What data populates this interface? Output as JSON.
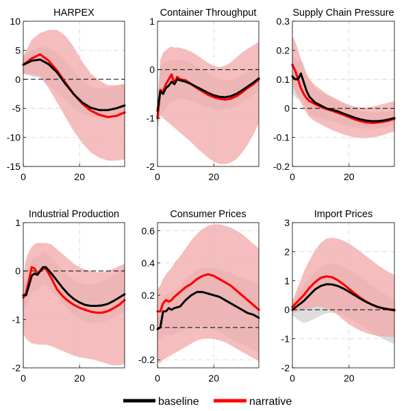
{
  "legend": {
    "baseline_label": "baseline",
    "narrative_label": "narrative",
    "baseline_color": "#000000",
    "narrative_color": "#ff0000",
    "placement": "bottom"
  },
  "colors": {
    "baseline_band": "#d9d9d9",
    "narrative_band": "#f2a7a7",
    "zero_line": "#000000",
    "grid": "#c8c8c8"
  },
  "chart_data": [
    {
      "type": "line",
      "title": "HARPEX",
      "x": [
        0,
        3,
        6,
        9,
        12,
        15,
        18,
        21,
        24,
        27,
        30,
        33,
        36
      ],
      "xlim": [
        0,
        36
      ],
      "ylim": [
        -15,
        10
      ],
      "xticks": [
        0,
        20
      ],
      "yticks": [
        10,
        5,
        0,
        -5,
        -10,
        -15
      ],
      "ytick_labels": [
        "10",
        "5",
        "0",
        "-5",
        "-10",
        "-15"
      ],
      "series": [
        {
          "name": "baseline",
          "values": [
            2.5,
            3.2,
            3.4,
            2.6,
            1.2,
            -0.8,
            -2.6,
            -4.0,
            -4.9,
            -5.3,
            -5.3,
            -5.0,
            -4.5
          ],
          "lower": [
            1.0,
            0.5,
            0.2,
            -1.0,
            -2.2,
            -3.5,
            -5.0,
            -6.0,
            -6.4,
            -6.6,
            -6.6,
            -6.2,
            -5.8
          ],
          "upper": [
            3.8,
            5.0,
            5.6,
            5.4,
            4.6,
            3.2,
            1.5,
            -0.2,
            -1.2,
            -1.6,
            -1.5,
            -1.2,
            -0.8
          ]
        },
        {
          "name": "narrative",
          "values": [
            2.5,
            3.6,
            4.3,
            3.2,
            1.5,
            -0.6,
            -2.6,
            -4.2,
            -5.4,
            -6.1,
            -6.5,
            -6.3,
            -5.7
          ],
          "lower": [
            1.0,
            0.8,
            0.5,
            -1.5,
            -4.0,
            -6.5,
            -9.0,
            -11.0,
            -12.6,
            -13.5,
            -14.0,
            -14.0,
            -13.8
          ],
          "upper": [
            4.0,
            6.8,
            8.0,
            8.5,
            8.5,
            7.5,
            5.5,
            3.0,
            1.0,
            -0.2,
            -1.0,
            -1.0,
            -0.8
          ]
        }
      ]
    },
    {
      "type": "line",
      "title": "Container Throughput",
      "x": [
        0,
        1,
        2,
        3,
        4,
        5,
        6,
        7,
        8,
        10,
        12,
        14,
        16,
        18,
        20,
        22,
        24,
        26,
        28,
        30,
        32,
        34,
        36
      ],
      "xlim": [
        0,
        36
      ],
      "ylim": [
        -2,
        1
      ],
      "xticks": [
        0,
        20
      ],
      "yticks": [
        1,
        0,
        -1,
        -2
      ],
      "ytick_labels": [
        "1",
        "0",
        "-1",
        "-2"
      ],
      "series": [
        {
          "name": "baseline",
          "values": [
            -0.85,
            -0.45,
            -0.5,
            -0.38,
            -0.33,
            -0.25,
            -0.3,
            -0.2,
            -0.22,
            -0.25,
            -0.3,
            -0.36,
            -0.42,
            -0.48,
            -0.53,
            -0.56,
            -0.57,
            -0.55,
            -0.5,
            -0.43,
            -0.35,
            -0.27,
            -0.18
          ],
          "lower": [
            -1.2,
            -0.95,
            -0.9,
            -0.78,
            -0.72,
            -0.65,
            -0.66,
            -0.6,
            -0.6,
            -0.62,
            -0.65,
            -0.7,
            -0.75,
            -0.78,
            -0.82,
            -0.83,
            -0.82,
            -0.8,
            -0.75,
            -0.68,
            -0.6,
            -0.52,
            -0.45
          ],
          "upper": [
            -0.55,
            0.1,
            0.12,
            0.15,
            0.18,
            0.2,
            0.18,
            0.2,
            0.2,
            0.18,
            0.14,
            0.08,
            0.0,
            -0.08,
            -0.16,
            -0.2,
            -0.22,
            -0.22,
            -0.18,
            -0.12,
            -0.06,
            0.0,
            0.05
          ]
        },
        {
          "name": "narrative",
          "values": [
            -1.0,
            -0.42,
            -0.45,
            -0.3,
            -0.2,
            -0.1,
            -0.28,
            -0.15,
            -0.2,
            -0.22,
            -0.3,
            -0.38,
            -0.45,
            -0.52,
            -0.57,
            -0.6,
            -0.62,
            -0.6,
            -0.55,
            -0.47,
            -0.38,
            -0.3,
            -0.2
          ],
          "lower": [
            -1.1,
            -0.95,
            -1.0,
            -1.05,
            -1.1,
            -1.15,
            -1.2,
            -1.25,
            -1.3,
            -1.4,
            -1.5,
            -1.62,
            -1.72,
            -1.82,
            -1.9,
            -1.95,
            -1.95,
            -1.92,
            -1.85,
            -1.72,
            -1.55,
            -1.35,
            -1.1
          ],
          "upper": [
            -0.8,
            0.2,
            0.35,
            0.4,
            0.45,
            0.48,
            0.45,
            0.46,
            0.45,
            0.42,
            0.37,
            0.3,
            0.22,
            0.14,
            0.08,
            0.05,
            0.08,
            0.15,
            0.25,
            0.35,
            0.43,
            0.5,
            0.58
          ]
        }
      ]
    },
    {
      "type": "line",
      "title": "Supply Chain Pressure",
      "x": [
        0,
        1,
        2,
        3,
        4,
        5,
        6,
        8,
        10,
        12,
        14,
        16,
        18,
        20,
        22,
        24,
        26,
        28,
        30,
        32,
        34,
        36
      ],
      "xlim": [
        0,
        36
      ],
      "ylim": [
        -0.2,
        0.3
      ],
      "xticks": [
        0,
        20
      ],
      "yticks": [
        0.3,
        0.2,
        0.1,
        0,
        -0.1,
        -0.2
      ],
      "ytick_labels": [
        "0.3",
        "0.2",
        "0.1",
        "0",
        "-0.1",
        "-0.2"
      ],
      "series": [
        {
          "name": "baseline",
          "values": [
            0.11,
            0.1,
            0.1,
            0.12,
            0.09,
            0.06,
            0.04,
            0.02,
            0.01,
            0.0,
            -0.005,
            -0.01,
            -0.018,
            -0.025,
            -0.032,
            -0.038,
            -0.042,
            -0.044,
            -0.044,
            -0.042,
            -0.038,
            -0.033
          ],
          "lower": [
            0.05,
            0.04,
            0.03,
            0.04,
            0.02,
            0.0,
            -0.02,
            -0.03,
            -0.035,
            -0.04,
            -0.045,
            -0.05,
            -0.055,
            -0.06,
            -0.065,
            -0.068,
            -0.07,
            -0.07,
            -0.068,
            -0.065,
            -0.062,
            -0.058
          ],
          "upper": [
            0.18,
            0.17,
            0.16,
            0.17,
            0.15,
            0.12,
            0.1,
            0.07,
            0.055,
            0.045,
            0.035,
            0.025,
            0.015,
            0.005,
            -0.002,
            -0.008,
            -0.012,
            -0.014,
            -0.014,
            -0.012,
            -0.01,
            -0.008
          ]
        },
        {
          "name": "narrative",
          "values": [
            0.15,
            0.13,
            0.1,
            0.07,
            0.05,
            0.035,
            0.025,
            0.015,
            0.005,
            -0.002,
            -0.008,
            -0.015,
            -0.022,
            -0.03,
            -0.038,
            -0.044,
            -0.048,
            -0.05,
            -0.049,
            -0.046,
            -0.042,
            -0.036
          ],
          "lower": [
            0.08,
            0.06,
            0.04,
            0.02,
            0.0,
            -0.015,
            -0.03,
            -0.045,
            -0.055,
            -0.065,
            -0.075,
            -0.082,
            -0.09,
            -0.095,
            -0.1,
            -0.102,
            -0.103,
            -0.1,
            -0.097,
            -0.092,
            -0.085,
            -0.08
          ],
          "upper": [
            0.25,
            0.23,
            0.2,
            0.17,
            0.14,
            0.12,
            0.1,
            0.08,
            0.065,
            0.05,
            0.04,
            0.03,
            0.02,
            0.012,
            0.006,
            0.003,
            0.002,
            0.005,
            0.01,
            0.015,
            0.02,
            0.025
          ]
        }
      ]
    },
    {
      "type": "line",
      "title": "Industrial Production",
      "x": [
        0,
        1,
        2,
        3,
        4,
        5,
        6,
        7,
        8,
        10,
        12,
        14,
        16,
        18,
        20,
        22,
        24,
        26,
        28,
        30,
        32,
        34,
        36
      ],
      "xlim": [
        0,
        36
      ],
      "ylim": [
        -2,
        1
      ],
      "xticks": [
        0,
        20
      ],
      "yticks": [
        1,
        0,
        -1,
        -2
      ],
      "ytick_labels": [
        "1",
        "0",
        "-1",
        "-2"
      ],
      "series": [
        {
          "name": "baseline",
          "values": [
            -0.5,
            -0.5,
            -0.3,
            -0.1,
            -0.05,
            -0.08,
            0.0,
            0.08,
            0.08,
            -0.05,
            -0.2,
            -0.35,
            -0.48,
            -0.58,
            -0.65,
            -0.7,
            -0.72,
            -0.72,
            -0.71,
            -0.68,
            -0.62,
            -0.55,
            -0.48
          ],
          "lower": [
            -0.7,
            -0.75,
            -0.6,
            -0.45,
            -0.4,
            -0.4,
            -0.33,
            -0.27,
            -0.27,
            -0.38,
            -0.52,
            -0.68,
            -0.82,
            -0.92,
            -1.0,
            -1.05,
            -1.08,
            -1.08,
            -1.06,
            -1.02,
            -0.96,
            -0.9,
            -0.84
          ],
          "upper": [
            -0.3,
            -0.2,
            0.0,
            0.25,
            0.3,
            0.28,
            0.35,
            0.4,
            0.4,
            0.28,
            0.14,
            0.0,
            -0.1,
            -0.18,
            -0.24,
            -0.27,
            -0.28,
            -0.26,
            -0.22,
            -0.16,
            -0.08,
            0.0,
            0.08
          ]
        },
        {
          "name": "narrative",
          "values": [
            -0.55,
            -0.45,
            -0.2,
            0.08,
            0.05,
            -0.05,
            0.0,
            0.05,
            0.05,
            -0.15,
            -0.38,
            -0.52,
            -0.62,
            -0.7,
            -0.76,
            -0.8,
            -0.84,
            -0.86,
            -0.86,
            -0.83,
            -0.77,
            -0.7,
            -0.6
          ],
          "lower": [
            -1.3,
            -1.4,
            -1.45,
            -1.5,
            -1.5,
            -1.52,
            -1.52,
            -1.52,
            -1.52,
            -1.55,
            -1.6,
            -1.65,
            -1.7,
            -1.75,
            -1.78,
            -1.8,
            -1.82,
            -1.85,
            -1.88,
            -1.92,
            -1.95,
            -1.95,
            -1.92
          ],
          "upper": [
            -0.1,
            0.25,
            0.4,
            0.5,
            0.55,
            0.58,
            0.58,
            0.58,
            0.58,
            0.55,
            0.45,
            0.35,
            0.25,
            0.15,
            0.08,
            0.03,
            0.0,
            -0.02,
            -0.02,
            0.0,
            0.05,
            0.1,
            0.15
          ]
        }
      ]
    },
    {
      "type": "line",
      "title": "Consumer Prices",
      "x": [
        0,
        1,
        2,
        3,
        4,
        5,
        6,
        8,
        10,
        12,
        14,
        16,
        18,
        20,
        22,
        24,
        26,
        28,
        30,
        32,
        34,
        36
      ],
      "xlim": [
        0,
        36
      ],
      "ylim": [
        -0.25,
        0.65
      ],
      "xticks": [
        0,
        20
      ],
      "yticks": [
        0.6,
        0.4,
        0.2,
        0,
        -0.2
      ],
      "ytick_labels": [
        "0.6",
        "0.4",
        "0.2",
        "0",
        "-0.2"
      ],
      "series": [
        {
          "name": "baseline",
          "values": [
            -0.01,
            0.0,
            0.1,
            0.1,
            0.12,
            0.11,
            0.12,
            0.13,
            0.17,
            0.2,
            0.22,
            0.22,
            0.21,
            0.2,
            0.19,
            0.17,
            0.15,
            0.13,
            0.11,
            0.09,
            0.08,
            0.06
          ],
          "lower": [
            -0.08,
            -0.07,
            -0.05,
            -0.05,
            -0.04,
            -0.05,
            -0.04,
            -0.03,
            -0.01,
            0.0,
            0.01,
            0.01,
            0.0,
            -0.01,
            -0.03,
            -0.05,
            -0.07,
            -0.09,
            -0.1,
            -0.12,
            -0.14,
            -0.15
          ],
          "upper": [
            0.05,
            0.07,
            0.2,
            0.2,
            0.22,
            0.22,
            0.23,
            0.25,
            0.3,
            0.33,
            0.36,
            0.37,
            0.37,
            0.37,
            0.36,
            0.35,
            0.34,
            0.32,
            0.31,
            0.3,
            0.28,
            0.27
          ]
        },
        {
          "name": "narrative",
          "values": [
            0.1,
            0.1,
            0.15,
            0.17,
            0.16,
            0.17,
            0.19,
            0.22,
            0.25,
            0.27,
            0.3,
            0.32,
            0.33,
            0.32,
            0.3,
            0.28,
            0.26,
            0.23,
            0.2,
            0.17,
            0.14,
            0.11
          ],
          "lower": [
            -0.22,
            -0.22,
            -0.2,
            -0.19,
            -0.18,
            -0.17,
            -0.16,
            -0.14,
            -0.12,
            -0.1,
            -0.08,
            -0.07,
            -0.07,
            -0.07,
            -0.08,
            -0.09,
            -0.11,
            -0.13,
            -0.15,
            -0.17,
            -0.19,
            -0.21
          ],
          "upper": [
            0.24,
            0.26,
            0.3,
            0.33,
            0.35,
            0.37,
            0.4,
            0.44,
            0.49,
            0.54,
            0.58,
            0.61,
            0.63,
            0.64,
            0.64,
            0.63,
            0.62,
            0.6,
            0.58,
            0.55,
            0.52,
            0.49
          ]
        }
      ]
    },
    {
      "type": "line",
      "title": "Import Prices",
      "x": [
        0,
        2,
        4,
        6,
        8,
        10,
        12,
        14,
        16,
        18,
        20,
        22,
        24,
        26,
        28,
        30,
        32,
        34,
        36
      ],
      "xlim": [
        0,
        36
      ],
      "ylim": [
        -2,
        3
      ],
      "xticks": [
        0,
        20
      ],
      "yticks": [
        3,
        2,
        1,
        0,
        -1,
        -2
      ],
      "ytick_labels": [
        "3",
        "2",
        "1",
        "0",
        "-1",
        "-2"
      ],
      "series": [
        {
          "name": "baseline",
          "values": [
            0.0,
            0.15,
            0.3,
            0.5,
            0.7,
            0.82,
            0.88,
            0.87,
            0.82,
            0.73,
            0.62,
            0.5,
            0.38,
            0.27,
            0.18,
            0.1,
            0.05,
            0.01,
            -0.02
          ],
          "lower": [
            -0.2,
            -0.35,
            -0.45,
            -0.4,
            -0.3,
            -0.2,
            -0.12,
            -0.1,
            -0.12,
            -0.18,
            -0.28,
            -0.4,
            -0.52,
            -0.65,
            -0.78,
            -0.9,
            -1.0,
            -1.1,
            -1.18
          ],
          "upper": [
            0.2,
            0.55,
            0.85,
            1.1,
            1.3,
            1.48,
            1.58,
            1.6,
            1.56,
            1.48,
            1.38,
            1.26,
            1.12,
            0.98,
            0.84,
            0.7,
            0.58,
            0.46,
            0.35
          ]
        },
        {
          "name": "narrative",
          "values": [
            0.1,
            0.3,
            0.5,
            0.75,
            0.95,
            1.1,
            1.15,
            1.12,
            1.02,
            0.88,
            0.72,
            0.56,
            0.41,
            0.28,
            0.18,
            0.1,
            0.05,
            0.02,
            0.0
          ],
          "lower": [
            -0.1,
            -0.05,
            0.0,
            0.05,
            0.1,
            0.1,
            0.05,
            -0.05,
            -0.18,
            -0.35,
            -0.5,
            -0.62,
            -0.72,
            -0.8,
            -0.86,
            -0.9,
            -0.92,
            -0.93,
            -0.93
          ],
          "upper": [
            0.3,
            0.8,
            1.3,
            1.7,
            2.05,
            2.3,
            2.45,
            2.48,
            2.45,
            2.38,
            2.28,
            2.15,
            2.0,
            1.85,
            1.7,
            1.55,
            1.42,
            1.3,
            1.2
          ]
        }
      ]
    }
  ]
}
